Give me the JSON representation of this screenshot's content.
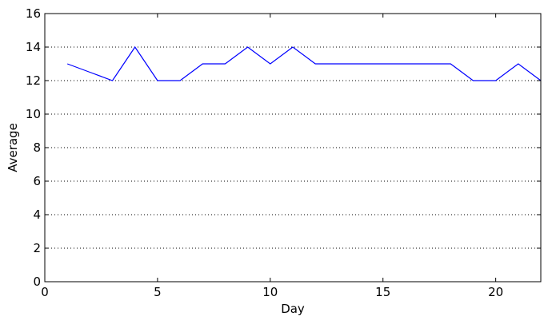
{
  "chart_data": {
    "type": "line",
    "xlabel": "Day",
    "ylabel": "Average",
    "xlim": [
      0,
      22
    ],
    "ylim": [
      0,
      16
    ],
    "xticks": [
      0,
      5,
      10,
      15,
      20
    ],
    "yticks": [
      0,
      2,
      4,
      6,
      8,
      10,
      12,
      14,
      16
    ],
    "grid": "y-dotted",
    "series": [
      {
        "color": "#0000ff",
        "x": [
          1,
          2,
          3,
          4,
          5,
          6,
          7,
          8,
          9,
          10,
          11,
          12,
          13,
          14,
          15,
          16,
          17,
          18,
          19,
          20,
          21,
          22
        ],
        "y": [
          13,
          12.5,
          12,
          14,
          12,
          12,
          13,
          13,
          14,
          13,
          14,
          13,
          13,
          13,
          13,
          13,
          13,
          13,
          12,
          12,
          13,
          12
        ]
      }
    ]
  }
}
